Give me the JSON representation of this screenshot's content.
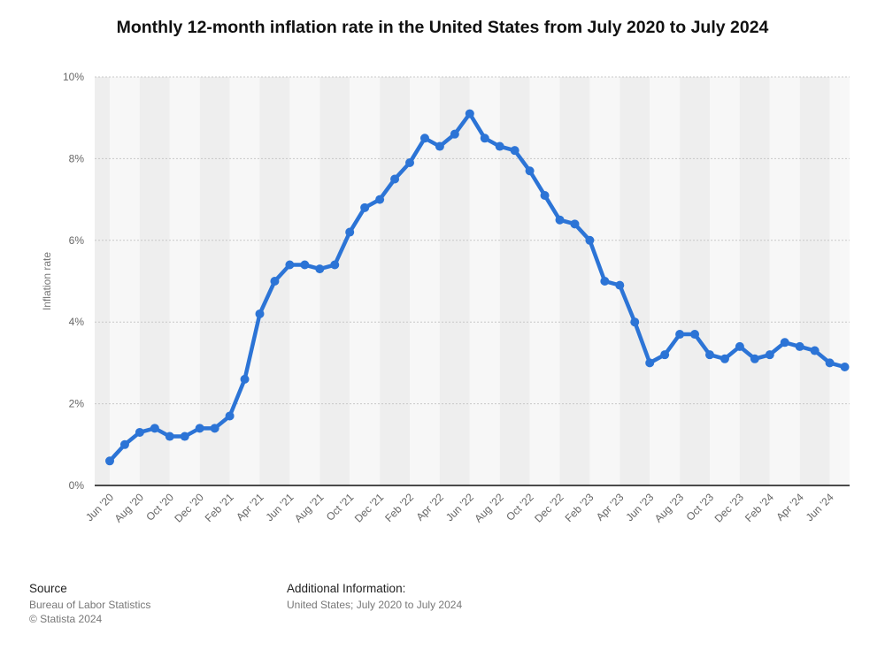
{
  "chart_data": {
    "type": "line",
    "title": "Monthly 12-month inflation rate in the United States from July 2020 to July 2024",
    "ylabel": "Inflation rate",
    "xlabel": "",
    "ylim": [
      0,
      10
    ],
    "y_ticks": [
      "0%",
      "2%",
      "4%",
      "6%",
      "8%",
      "10%"
    ],
    "x_tick_labels": [
      "Jun '20",
      "Aug '20",
      "Oct '20",
      "Dec '20",
      "Feb '21",
      "Apr '21",
      "Jun '21",
      "Aug '21",
      "Oct '21",
      "Dec '21",
      "Feb '22",
      "Apr '22",
      "Jun '22",
      "Aug '22",
      "Oct '22",
      "Dec '22",
      "Feb '23",
      "Apr '23",
      "Jun '23",
      "Aug '23",
      "Oct '23",
      "Dec '23",
      "Feb '24",
      "Apr '24",
      "Jun '24"
    ],
    "grid": true,
    "series_color": "#2c74d6",
    "x": [
      "Jun '20",
      "Jul '20",
      "Aug '20",
      "Sep '20",
      "Oct '20",
      "Nov '20",
      "Dec '20",
      "Jan '21",
      "Feb '21",
      "Mar '21",
      "Apr '21",
      "May '21",
      "Jun '21",
      "Jul '21",
      "Aug '21",
      "Sep '21",
      "Oct '21",
      "Nov '21",
      "Dec '21",
      "Jan '22",
      "Feb '22",
      "Mar '22",
      "Apr '22",
      "May '22",
      "Jun '22",
      "Jul '22",
      "Aug '22",
      "Sep '22",
      "Oct '22",
      "Nov '22",
      "Dec '22",
      "Jan '23",
      "Feb '23",
      "Mar '23",
      "Apr '23",
      "May '23",
      "Jun '23",
      "Jul '23",
      "Aug '23",
      "Sep '23",
      "Oct '23",
      "Nov '23",
      "Dec '23",
      "Jan '24",
      "Feb '24",
      "Mar '24",
      "Apr '24",
      "May '24",
      "Jun '24",
      "Jul '24"
    ],
    "values": [
      0.6,
      1.0,
      1.3,
      1.4,
      1.2,
      1.2,
      1.4,
      1.4,
      1.7,
      2.6,
      4.2,
      5.0,
      5.4,
      5.4,
      5.3,
      5.4,
      6.2,
      6.8,
      7.0,
      7.5,
      7.9,
      8.5,
      8.3,
      8.6,
      9.1,
      8.5,
      8.3,
      8.2,
      7.7,
      7.1,
      6.5,
      6.4,
      6.0,
      5.0,
      4.9,
      4.0,
      3.0,
      3.2,
      3.7,
      3.7,
      3.2,
      3.1,
      3.4,
      3.1,
      3.2,
      3.5,
      3.4,
      3.3,
      3.0,
      2.9
    ]
  },
  "footer": {
    "source_heading": "Source",
    "source_line1": "Bureau of Labor Statistics",
    "source_line2": "© Statista 2024",
    "info_heading": "Additional Information:",
    "info_line1": "United States; July 2020 to July 2024"
  }
}
